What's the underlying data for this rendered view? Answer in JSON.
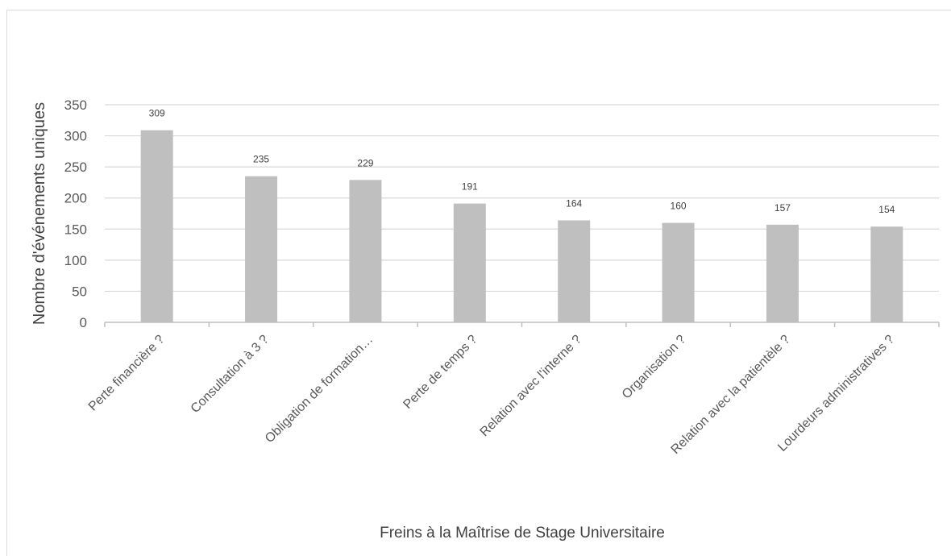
{
  "chart_data": {
    "type": "bar",
    "title": "",
    "xlabel": "Freins à la Maîtrise de Stage Universitaire",
    "ylabel": "Nombre d'événements uniques",
    "categories": [
      "Perte financière ?",
      "Consultation à 3 ?",
      "Obligation de formation…",
      "Perte de temps ?",
      "Relation avec l'interne ?",
      "Organisation ?",
      "Relation avec la patientèle ?",
      "Lourdeurs administratives ?"
    ],
    "values": [
      309,
      235,
      229,
      191,
      164,
      160,
      157,
      154
    ],
    "data_labels": [
      "309",
      "235",
      "229",
      "191",
      "164",
      "160",
      "157",
      "154"
    ],
    "ylim": [
      0,
      350
    ],
    "yticks": [
      "0",
      "50",
      "100",
      "150",
      "200",
      "250",
      "300",
      "350"
    ],
    "grid": true,
    "legend": "none",
    "colors": {
      "bar": "#bfbfbf",
      "grid": "#d9d9d9",
      "axis": "#bfbfbf"
    }
  }
}
